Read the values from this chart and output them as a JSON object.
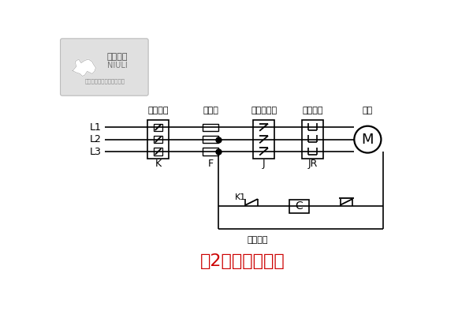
{
  "title": "图2：电气原理图",
  "title_color": "#cc0000",
  "title_fontsize": 16,
  "bg_color": "#ffffff",
  "line_color": "#000000",
  "label_color": "#000000",
  "label_fontsize": 9,
  "top_labels": [
    "电源开关",
    "保险丝",
    "交流接触器",
    "热继电器",
    "马达"
  ],
  "line_labels": [
    "L1",
    "L2",
    "L3"
  ],
  "bottom_labels": [
    "K",
    "F",
    "J",
    "JR"
  ],
  "motor_label": "M",
  "k1_label": "K1",
  "ctrl_label": "电源开关",
  "c_label": "C",
  "logo_text1": "牛力机械",
  "logo_text2": "NIULI",
  "logo_text3": "上海牛力机械设备有限公司"
}
